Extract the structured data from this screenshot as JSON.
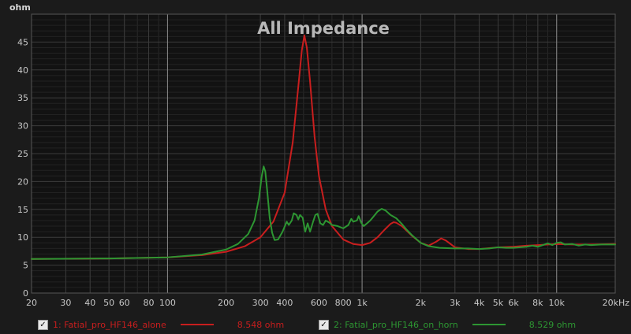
{
  "chart_data": {
    "type": "line",
    "title": "All Impedance",
    "ylabel": "ohm",
    "xunit_suffix": "Hz",
    "xscale": "log",
    "xlim": [
      20,
      20000
    ],
    "ylim": [
      0,
      50
    ],
    "grid": true,
    "legend_position": "bottom",
    "x_ticks": [
      {
        "value": 20,
        "label": "20"
      },
      {
        "value": 30,
        "label": "30"
      },
      {
        "value": 40,
        "label": "40"
      },
      {
        "value": 50,
        "label": "50"
      },
      {
        "value": 60,
        "label": "60"
      },
      {
        "value": 80,
        "label": "80"
      },
      {
        "value": 100,
        "label": "100"
      },
      {
        "value": 200,
        "label": "200"
      },
      {
        "value": 300,
        "label": "300"
      },
      {
        "value": 400,
        "label": "400"
      },
      {
        "value": 600,
        "label": "600"
      },
      {
        "value": 800,
        "label": "800"
      },
      {
        "value": 1000,
        "label": "1k"
      },
      {
        "value": 2000,
        "label": "2k"
      },
      {
        "value": 3000,
        "label": "3k"
      },
      {
        "value": 4000,
        "label": "4k"
      },
      {
        "value": 5000,
        "label": "5k"
      },
      {
        "value": 6000,
        "label": "6k"
      },
      {
        "value": 8000,
        "label": "8k"
      },
      {
        "value": 10000,
        "label": "10k"
      },
      {
        "value": 20000,
        "label": "20k"
      }
    ],
    "y_ticks": [
      0,
      5,
      10,
      15,
      20,
      25,
      30,
      35,
      40,
      45
    ],
    "series": [
      {
        "name": "1: Fatial_pro_HF146_alone",
        "readout": "8.548 ohm",
        "color": "#c81e1e",
        "points": [
          [
            20,
            6.1
          ],
          [
            50,
            6.2
          ],
          [
            100,
            6.4
          ],
          [
            150,
            6.8
          ],
          [
            200,
            7.4
          ],
          [
            250,
            8.4
          ],
          [
            300,
            10.0
          ],
          [
            350,
            12.8
          ],
          [
            400,
            18.0
          ],
          [
            440,
            27.0
          ],
          [
            470,
            37.0
          ],
          [
            490,
            43.5
          ],
          [
            505,
            46.2
          ],
          [
            520,
            44.0
          ],
          [
            540,
            38.0
          ],
          [
            570,
            28.0
          ],
          [
            600,
            21.0
          ],
          [
            650,
            15.0
          ],
          [
            700,
            12.0
          ],
          [
            800,
            9.6
          ],
          [
            900,
            8.8
          ],
          [
            1000,
            8.6
          ],
          [
            1100,
            9.0
          ],
          [
            1200,
            10.0
          ],
          [
            1300,
            11.3
          ],
          [
            1400,
            12.4
          ],
          [
            1450,
            12.7
          ],
          [
            1500,
            12.6
          ],
          [
            1600,
            12.0
          ],
          [
            1800,
            10.3
          ],
          [
            2000,
            9.0
          ],
          [
            2200,
            8.5
          ],
          [
            2400,
            9.2
          ],
          [
            2550,
            9.8
          ],
          [
            2700,
            9.4
          ],
          [
            3000,
            8.2
          ],
          [
            3500,
            7.9
          ],
          [
            4000,
            7.9
          ],
          [
            5000,
            8.2
          ],
          [
            6000,
            8.3
          ],
          [
            7000,
            8.5
          ],
          [
            8000,
            8.6
          ],
          [
            10000,
            8.8
          ],
          [
            12000,
            8.7
          ],
          [
            15000,
            8.7
          ],
          [
            20000,
            8.8
          ]
        ]
      },
      {
        "name": "2: Fatial_pro_HF146_on_horn",
        "readout": "8.529 ohm",
        "color": "#2d9632",
        "points": [
          [
            20,
            6.1
          ],
          [
            50,
            6.2
          ],
          [
            100,
            6.4
          ],
          [
            150,
            6.9
          ],
          [
            200,
            7.8
          ],
          [
            230,
            8.8
          ],
          [
            260,
            10.6
          ],
          [
            280,
            13.0
          ],
          [
            295,
            17.0
          ],
          [
            305,
            21.0
          ],
          [
            312,
            22.7
          ],
          [
            318,
            21.8
          ],
          [
            325,
            18.5
          ],
          [
            335,
            13.5
          ],
          [
            345,
            10.8
          ],
          [
            355,
            9.5
          ],
          [
            370,
            9.6
          ],
          [
            390,
            11.0
          ],
          [
            410,
            12.8
          ],
          [
            420,
            12.2
          ],
          [
            435,
            13.0
          ],
          [
            445,
            14.3
          ],
          [
            460,
            14.0
          ],
          [
            470,
            13.2
          ],
          [
            480,
            14.0
          ],
          [
            495,
            13.5
          ],
          [
            510,
            11.0
          ],
          [
            525,
            12.5
          ],
          [
            540,
            11.0
          ],
          [
            560,
            12.8
          ],
          [
            575,
            14.0
          ],
          [
            590,
            14.2
          ],
          [
            610,
            12.5
          ],
          [
            630,
            12.2
          ],
          [
            650,
            13.0
          ],
          [
            680,
            12.6
          ],
          [
            700,
            12.2
          ],
          [
            750,
            12.0
          ],
          [
            800,
            11.6
          ],
          [
            850,
            12.2
          ],
          [
            880,
            13.3
          ],
          [
            900,
            12.8
          ],
          [
            940,
            13.0
          ],
          [
            960,
            13.8
          ],
          [
            990,
            12.6
          ],
          [
            1020,
            12.0
          ],
          [
            1060,
            12.5
          ],
          [
            1100,
            13.0
          ],
          [
            1150,
            13.8
          ],
          [
            1200,
            14.6
          ],
          [
            1260,
            15.1
          ],
          [
            1320,
            14.8
          ],
          [
            1400,
            14.0
          ],
          [
            1500,
            13.4
          ],
          [
            1600,
            12.4
          ],
          [
            1700,
            11.3
          ],
          [
            1800,
            10.4
          ],
          [
            2000,
            9.0
          ],
          [
            2200,
            8.4
          ],
          [
            2500,
            8.1
          ],
          [
            3000,
            8.0
          ],
          [
            3500,
            8.0
          ],
          [
            4000,
            7.9
          ],
          [
            4500,
            8.0
          ],
          [
            5000,
            8.2
          ],
          [
            5500,
            8.1
          ],
          [
            6000,
            8.1
          ],
          [
            6500,
            8.2
          ],
          [
            7000,
            8.3
          ],
          [
            7500,
            8.5
          ],
          [
            8000,
            8.3
          ],
          [
            8500,
            8.6
          ],
          [
            9000,
            8.9
          ],
          [
            9500,
            8.6
          ],
          [
            10000,
            9.0
          ],
          [
            10500,
            9.1
          ],
          [
            11000,
            8.7
          ],
          [
            12000,
            8.8
          ],
          [
            13000,
            8.5
          ],
          [
            14000,
            8.7
          ],
          [
            15000,
            8.6
          ],
          [
            17000,
            8.7
          ],
          [
            20000,
            8.7
          ]
        ]
      }
    ]
  },
  "legend": {
    "check_glyph": "✓"
  }
}
